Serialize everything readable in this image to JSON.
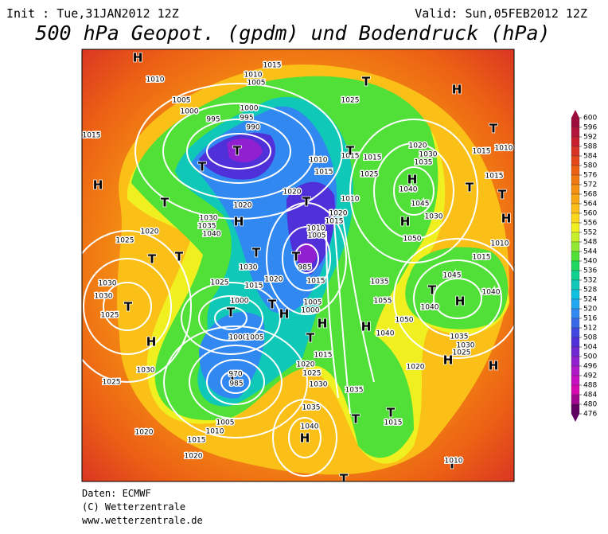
{
  "header": {
    "init": "Init : Tue,31JAN2012 12Z",
    "valid": "Valid: Sun,05FEB2012 12Z",
    "title": "500 hPa Geopot. (gpdm) und Bodendruck (hPa)"
  },
  "colorbar": {
    "ticks": [
      600,
      596,
      592,
      588,
      584,
      580,
      576,
      572,
      568,
      564,
      560,
      556,
      552,
      548,
      544,
      540,
      536,
      532,
      528,
      524,
      520,
      516,
      512,
      508,
      504,
      500,
      496,
      492,
      488,
      484,
      480,
      476
    ],
    "colors": [
      "#9c0c3c",
      "#b4143a",
      "#c81e30",
      "#d83224",
      "#e4481a",
      "#ec6014",
      "#f07812",
      "#f49012",
      "#f8a814",
      "#fac018",
      "#fcd81c",
      "#f0f020",
      "#c8f028",
      "#90e830",
      "#50e038",
      "#20d860",
      "#10d090",
      "#10c8b8",
      "#10c0e0",
      "#20a8f0",
      "#3088f0",
      "#3868e8",
      "#4048e0",
      "#5030d8",
      "#7028d0",
      "#9020d0",
      "#b018c8",
      "#c810c0",
      "#d808b0",
      "#a00890",
      "#600060"
    ]
  },
  "map": {
    "labels": [
      "H",
      "1010",
      "1015",
      "1010",
      "1005",
      "1005",
      "1000",
      "995",
      "1000",
      "995",
      "990",
      "T",
      "1025",
      "H",
      "T",
      "1015",
      "1010",
      "H",
      "T",
      "T",
      "1015",
      "1010",
      "1015",
      "1015",
      "1015",
      "1025",
      "1020",
      "1030",
      "1035",
      "H",
      "1040",
      "T",
      "1020",
      "1020",
      "T",
      "T",
      "1020",
      "1015",
      "1045",
      "1030",
      "H",
      "1050",
      "1020",
      "1025",
      "T",
      "T",
      "1030",
      "1030",
      "T",
      "1025",
      "H",
      "1030",
      "1025",
      "1020",
      "1015",
      "1020",
      "1010",
      "1005",
      "H",
      "1040",
      "1035",
      "T",
      "1035",
      "T",
      "T",
      "1015",
      "1020",
      "H",
      "H",
      "1045",
      "1040",
      "T",
      "1040",
      "H",
      "1030",
      "1035",
      "1025",
      "T",
      "1010",
      "1050",
      "1040",
      "1055",
      "1035",
      "1020",
      "1015",
      "T",
      "1005",
      "1000",
      "1015",
      "T",
      "985",
      "1030",
      "1025",
      "1000",
      "T",
      "T",
      "970",
      "985",
      "1000",
      "1005",
      "1015",
      "1020",
      "1025",
      "1030",
      "H",
      "H",
      "H",
      "T",
      "1010",
      "1035",
      "1030",
      "1040",
      "H",
      "T",
      "1005",
      "1010",
      "1010",
      "1015",
      "T",
      "1015",
      "H",
      "T"
    ]
  },
  "footer": [
    "Daten: ECMWF",
    "(C) Wetterzentrale",
    "www.wetterzentrale.de"
  ]
}
